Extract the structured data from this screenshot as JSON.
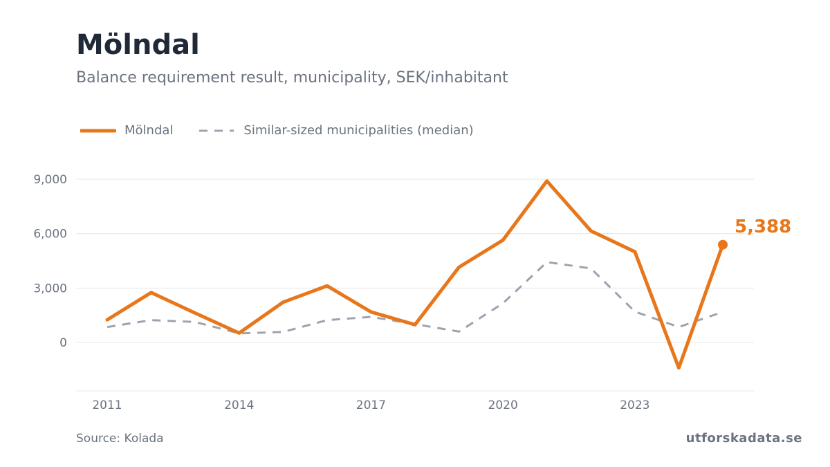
{
  "header": {
    "title": "Mölndal",
    "subtitle": "Balance requirement result, municipality, SEK/inhabitant"
  },
  "footer": {
    "source": "Source: Kolada",
    "brand": "utforskadata.se"
  },
  "colors": {
    "primary": "#e8761a",
    "median": "#9ca3af",
    "grid": "#e5e7eb",
    "text": "#6b7280"
  },
  "chart_data": {
    "type": "line",
    "title": "Mölndal",
    "subtitle": "Balance requirement result, municipality, SEK/inhabitant",
    "x": [
      2011,
      2012,
      2013,
      2014,
      2015,
      2016,
      2017,
      2018,
      2019,
      2020,
      2021,
      2022,
      2023,
      2024,
      2025
    ],
    "xticks": [
      "2011",
      "2014",
      "2017",
      "2020",
      "2023"
    ],
    "yticks": [
      "0",
      "3,000",
      "6,000",
      "9,000"
    ],
    "ylim": [
      -2700,
      9000
    ],
    "grid": "horizontal",
    "legend_position": "top-left",
    "series": [
      {
        "name": "Mölndal",
        "style": "solid",
        "color": "#e8761a",
        "values": [
          1250,
          2750,
          1620,
          520,
          2220,
          3120,
          1680,
          980,
          4150,
          5640,
          8900,
          6150,
          5000,
          -1400,
          5388
        ]
      },
      {
        "name": "Similar-sized municipalities (median)",
        "style": "dashed",
        "color": "#9ca3af",
        "values": [
          850,
          1230,
          1130,
          500,
          580,
          1230,
          1410,
          1010,
          600,
          2160,
          4430,
          4080,
          1700,
          850,
          1680
        ]
      }
    ],
    "end_label": "5,388"
  }
}
